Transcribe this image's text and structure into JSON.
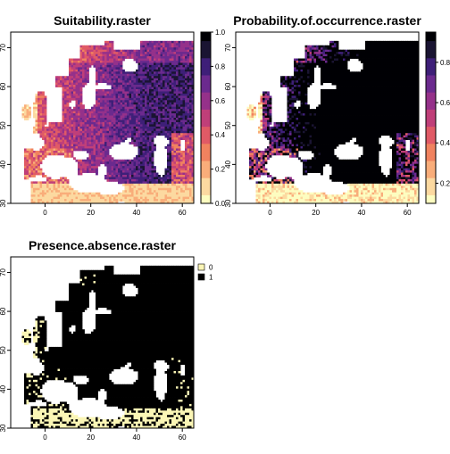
{
  "panels": [
    {
      "title": "Suitability.raster",
      "x_ticks": [
        "0",
        "20",
        "40",
        "60"
      ],
      "y_ticks": [
        "30",
        "40",
        "50",
        "60",
        "70"
      ],
      "legend_type": "continuous",
      "legend_ticks": [
        "0.0",
        "0.2",
        "0.4",
        "0.6",
        "0.8",
        "1.0"
      ]
    },
    {
      "title": "Probability.of.occurrence.raster",
      "x_ticks": [
        "0",
        "20",
        "40",
        "60"
      ],
      "y_ticks": [
        "30",
        "40",
        "50",
        "60",
        "70"
      ],
      "legend_type": "continuous",
      "legend_ticks": [
        "0.2",
        "0.4",
        "0.6",
        "0.8"
      ]
    },
    {
      "title": "Presence.absence.raster",
      "x_ticks": [
        "0",
        "20",
        "40",
        "60"
      ],
      "y_ticks": [
        "30",
        "40",
        "50",
        "60",
        "70"
      ],
      "legend_type": "binary",
      "legend_items": [
        {
          "label": "0",
          "color": "#fbf6b6"
        },
        {
          "label": "1",
          "color": "#000000"
        }
      ]
    }
  ],
  "colors": {
    "palette": [
      "#fdfdc0",
      "#fcd9a0",
      "#f9ad7a",
      "#f0825f",
      "#e05a66",
      "#c03f79",
      "#95318a",
      "#6b2a8e",
      "#3e1f78",
      "#1a1432",
      "#000004"
    ],
    "water": "#ffffff",
    "absence": "#fbf6b6",
    "presence": "#000000"
  },
  "chart_data": [
    {
      "type": "heatmap",
      "title": "Suitability.raster",
      "xlim": [
        -15,
        65
      ],
      "ylim": [
        30,
        74
      ],
      "value_range": [
        0.0,
        1.0
      ]
    },
    {
      "type": "heatmap",
      "title": "Probability.of.occurrence.raster",
      "xlim": [
        -15,
        65
      ],
      "ylim": [
        30,
        74
      ],
      "value_range": [
        0.1,
        0.95
      ]
    },
    {
      "type": "heatmap",
      "title": "Presence.absence.raster",
      "xlim": [
        -15,
        65
      ],
      "ylim": [
        30,
        74
      ],
      "categories": [
        "0",
        "1"
      ]
    }
  ]
}
